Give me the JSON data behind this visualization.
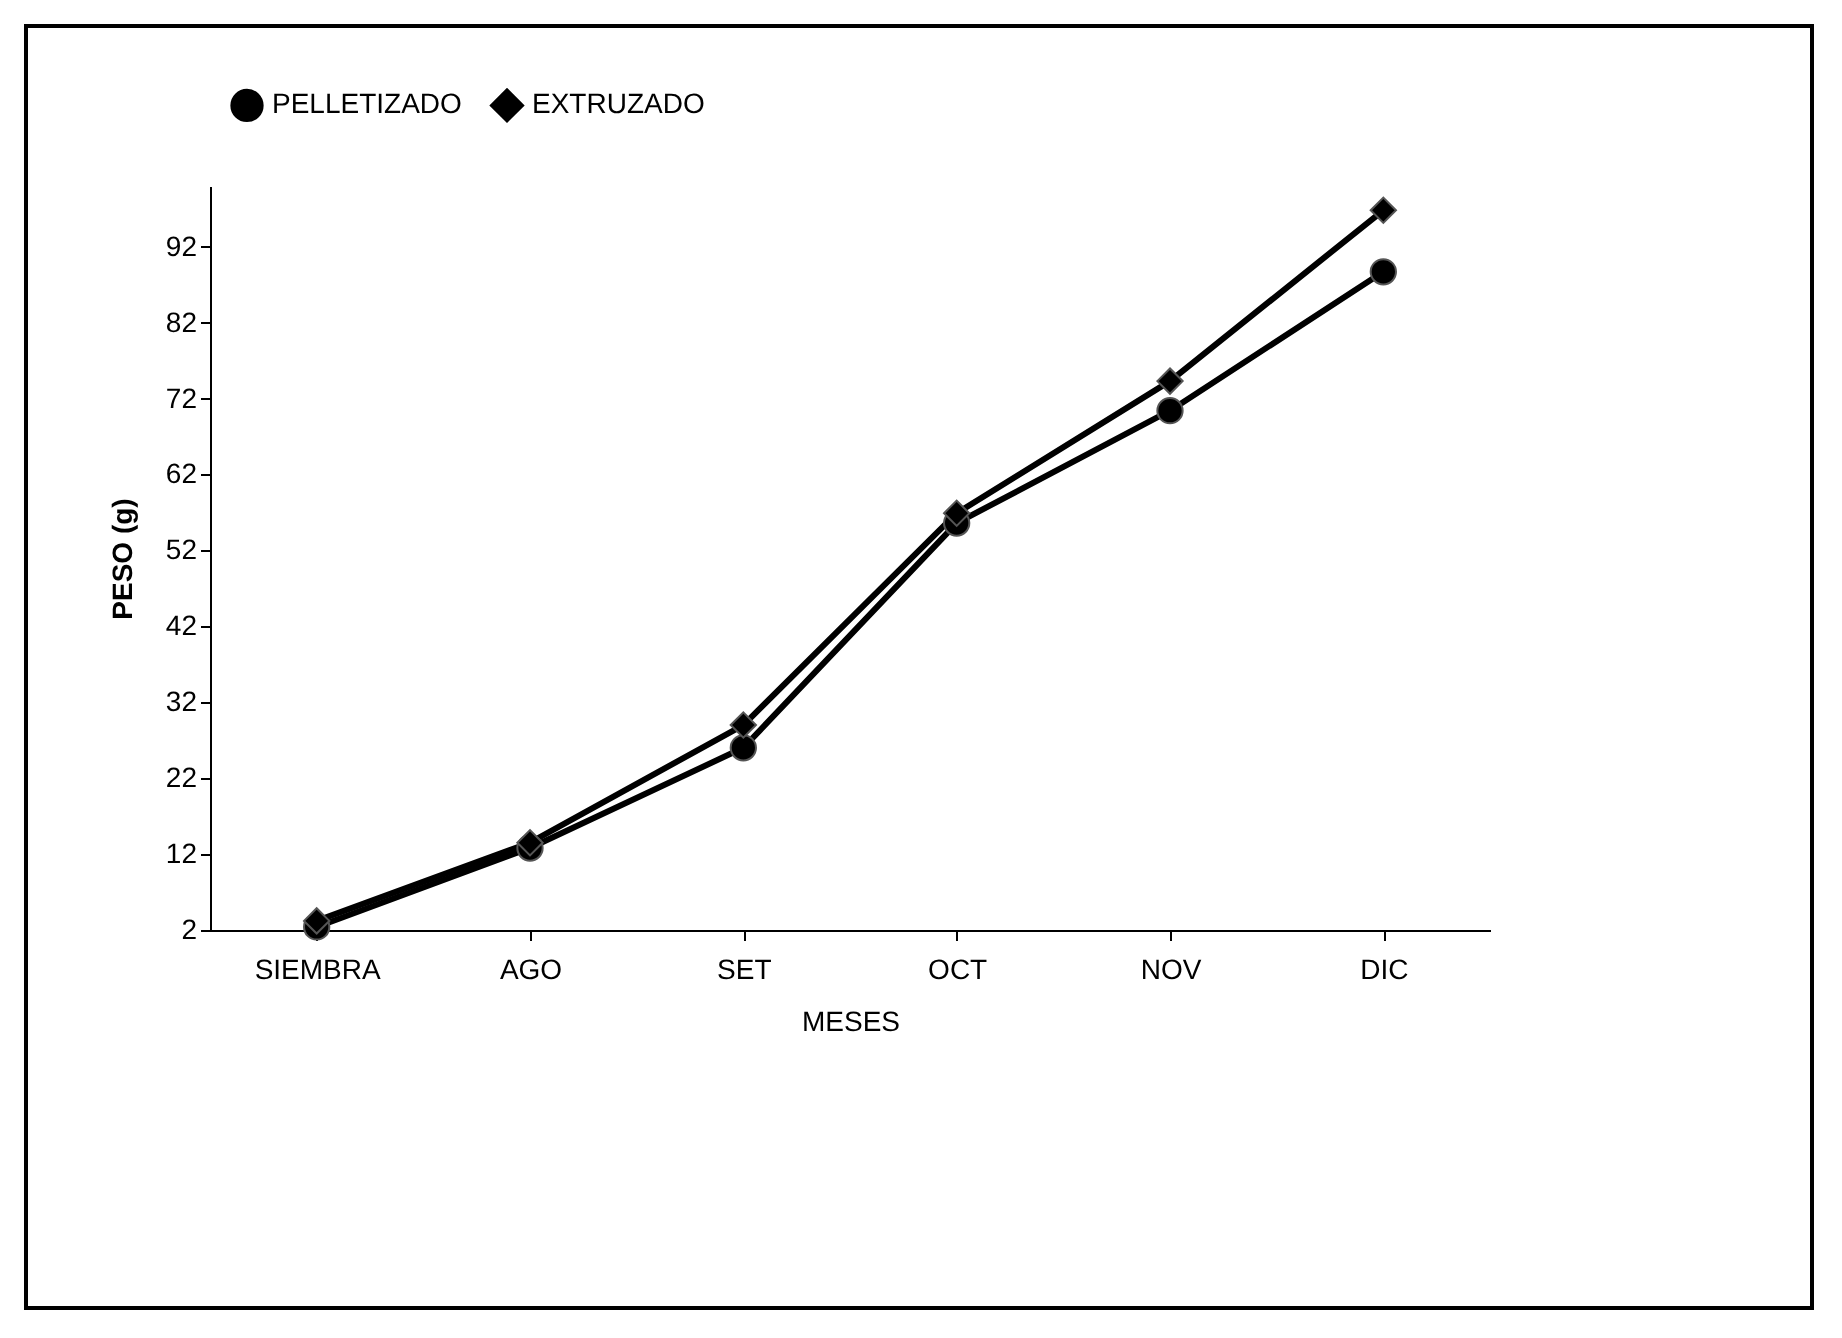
{
  "chart_data": {
    "type": "line",
    "xlabel": "MESES",
    "ylabel": "PESO (g)",
    "categories": [
      "SIEMBRA",
      "AGO",
      "SET",
      "OCT",
      "NOV",
      "DIC"
    ],
    "series": [
      {
        "name": "PELLETIZADO",
        "color": "#000000",
        "marker": "circle",
        "values": [
          2.4,
          12.8,
          26.0,
          55.6,
          70.4,
          88.7
        ]
      },
      {
        "name": "EXTRUZADO",
        "color": "#000000",
        "marker": "diamond",
        "values": [
          3.2,
          13.5,
          29.0,
          56.9,
          74.3,
          96.8
        ]
      }
    ],
    "ylim": [
      2,
      100
    ],
    "yticks": [
      2,
      12,
      22,
      32,
      42,
      52,
      62,
      72,
      82,
      92
    ],
    "grid": false,
    "legend": "top"
  }
}
